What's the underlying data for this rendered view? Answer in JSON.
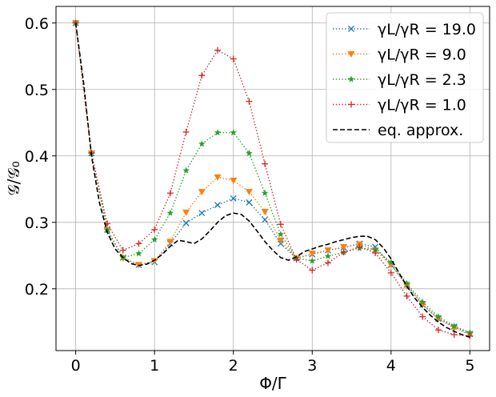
{
  "chart_data": {
    "type": "line",
    "xlabel": "Φ/Γ",
    "ylabel": "𝒢/𝒢₀",
    "xlim": [
      -0.25,
      5.25
    ],
    "ylim": [
      0.107,
      0.625
    ],
    "xticks": [
      0,
      1,
      2,
      3,
      4,
      5
    ],
    "yticks": [
      0.2,
      0.3,
      0.4,
      0.5,
      0.6
    ],
    "grid": true,
    "legend_position": "top-right",
    "series": [
      {
        "name": "γL/γR = 19.0",
        "color": "#1f77b4",
        "marker": "x",
        "linestyle": "dotted",
        "x": [
          0,
          0.2,
          0.4,
          0.6,
          0.8,
          1.0,
          1.2,
          1.4,
          1.6,
          1.8,
          2.0,
          2.2,
          2.4,
          2.6,
          2.8,
          3.0,
          3.2,
          3.4,
          3.6,
          3.8,
          4.0,
          4.2,
          4.4,
          4.6,
          4.8,
          5.0
        ],
        "y": [
          0.6,
          0.404,
          0.289,
          0.247,
          0.236,
          0.24,
          0.268,
          0.299,
          0.314,
          0.326,
          0.336,
          0.33,
          0.304,
          0.268,
          0.246,
          0.252,
          0.258,
          0.262,
          0.268,
          0.263,
          0.236,
          0.206,
          0.176,
          0.155,
          0.143,
          0.132
        ]
      },
      {
        "name": "γL/γR = 9.0",
        "color": "#ff7f0e",
        "marker": "triangle-down",
        "linestyle": "dotted",
        "x": [
          0,
          0.2,
          0.4,
          0.6,
          0.8,
          1.0,
          1.2,
          1.4,
          1.6,
          1.8,
          2.0,
          2.2,
          2.4,
          2.6,
          2.8,
          3.0,
          3.2,
          3.4,
          3.6,
          3.8,
          4.0,
          4.2,
          4.4,
          4.6,
          4.8,
          5.0
        ],
        "y": [
          0.6,
          0.404,
          0.288,
          0.246,
          0.236,
          0.242,
          0.271,
          0.315,
          0.346,
          0.368,
          0.363,
          0.346,
          0.316,
          0.273,
          0.246,
          0.253,
          0.258,
          0.263,
          0.267,
          0.258,
          0.236,
          0.204,
          0.176,
          0.155,
          0.141,
          0.131
        ]
      },
      {
        "name": "γL/γR = 2.3",
        "color": "#2ca02c",
        "marker": "star",
        "linestyle": "dotted",
        "x": [
          0,
          0.2,
          0.4,
          0.6,
          0.8,
          1.0,
          1.2,
          1.4,
          1.6,
          1.8,
          2.0,
          2.2,
          2.4,
          2.6,
          2.8,
          3.0,
          3.2,
          3.4,
          3.6,
          3.8,
          4.0,
          4.2,
          4.4,
          4.6,
          4.8,
          5.0
        ],
        "y": [
          0.6,
          0.404,
          0.288,
          0.247,
          0.253,
          0.274,
          0.314,
          0.378,
          0.418,
          0.435,
          0.435,
          0.404,
          0.344,
          0.282,
          0.246,
          0.242,
          0.249,
          0.255,
          0.261,
          0.259,
          0.24,
          0.208,
          0.18,
          0.158,
          0.144,
          0.134
        ]
      },
      {
        "name": "γL/γR = 1.0",
        "color": "#d62728",
        "marker": "plus",
        "linestyle": "dotted",
        "x": [
          0,
          0.2,
          0.4,
          0.6,
          0.8,
          1.0,
          1.2,
          1.4,
          1.6,
          1.8,
          2.0,
          2.2,
          2.4,
          2.6,
          2.8,
          3.0,
          3.2,
          3.4,
          3.6,
          3.8,
          4.0,
          4.2,
          4.4,
          4.6,
          4.8,
          5.0
        ],
        "y": [
          0.6,
          0.404,
          0.298,
          0.258,
          0.268,
          0.289,
          0.344,
          0.436,
          0.521,
          0.559,
          0.546,
          0.482,
          0.388,
          0.297,
          0.244,
          0.228,
          0.239,
          0.255,
          0.263,
          0.254,
          0.224,
          0.189,
          0.158,
          0.138,
          0.131,
          0.129
        ]
      },
      {
        "name": "eq. approx.",
        "color": "#000000",
        "marker": "none",
        "linestyle": "dashed",
        "x": [
          0,
          0.1,
          0.2,
          0.3,
          0.4,
          0.5,
          0.6,
          0.7,
          0.8,
          0.9,
          1.0,
          1.1,
          1.2,
          1.3,
          1.4,
          1.5,
          1.6,
          1.7,
          1.8,
          1.9,
          2.0,
          2.1,
          2.2,
          2.3,
          2.4,
          2.5,
          2.6,
          2.7,
          2.8,
          2.9,
          3.0,
          3.1,
          3.2,
          3.3,
          3.4,
          3.5,
          3.6,
          3.7,
          3.8,
          3.9,
          4.0,
          4.1,
          4.2,
          4.3,
          4.4,
          4.5,
          4.6,
          4.7,
          4.8,
          4.9,
          5.0
        ],
        "y": [
          0.6,
          0.51,
          0.4,
          0.33,
          0.285,
          0.26,
          0.247,
          0.238,
          0.235,
          0.237,
          0.243,
          0.252,
          0.264,
          0.273,
          0.271,
          0.268,
          0.275,
          0.287,
          0.3,
          0.31,
          0.314,
          0.312,
          0.302,
          0.287,
          0.271,
          0.258,
          0.247,
          0.243,
          0.248,
          0.256,
          0.26,
          0.264,
          0.267,
          0.271,
          0.274,
          0.277,
          0.279,
          0.279,
          0.274,
          0.262,
          0.245,
          0.224,
          0.204,
          0.186,
          0.172,
          0.16,
          0.15,
          0.142,
          0.136,
          0.131,
          0.127
        ]
      }
    ]
  }
}
